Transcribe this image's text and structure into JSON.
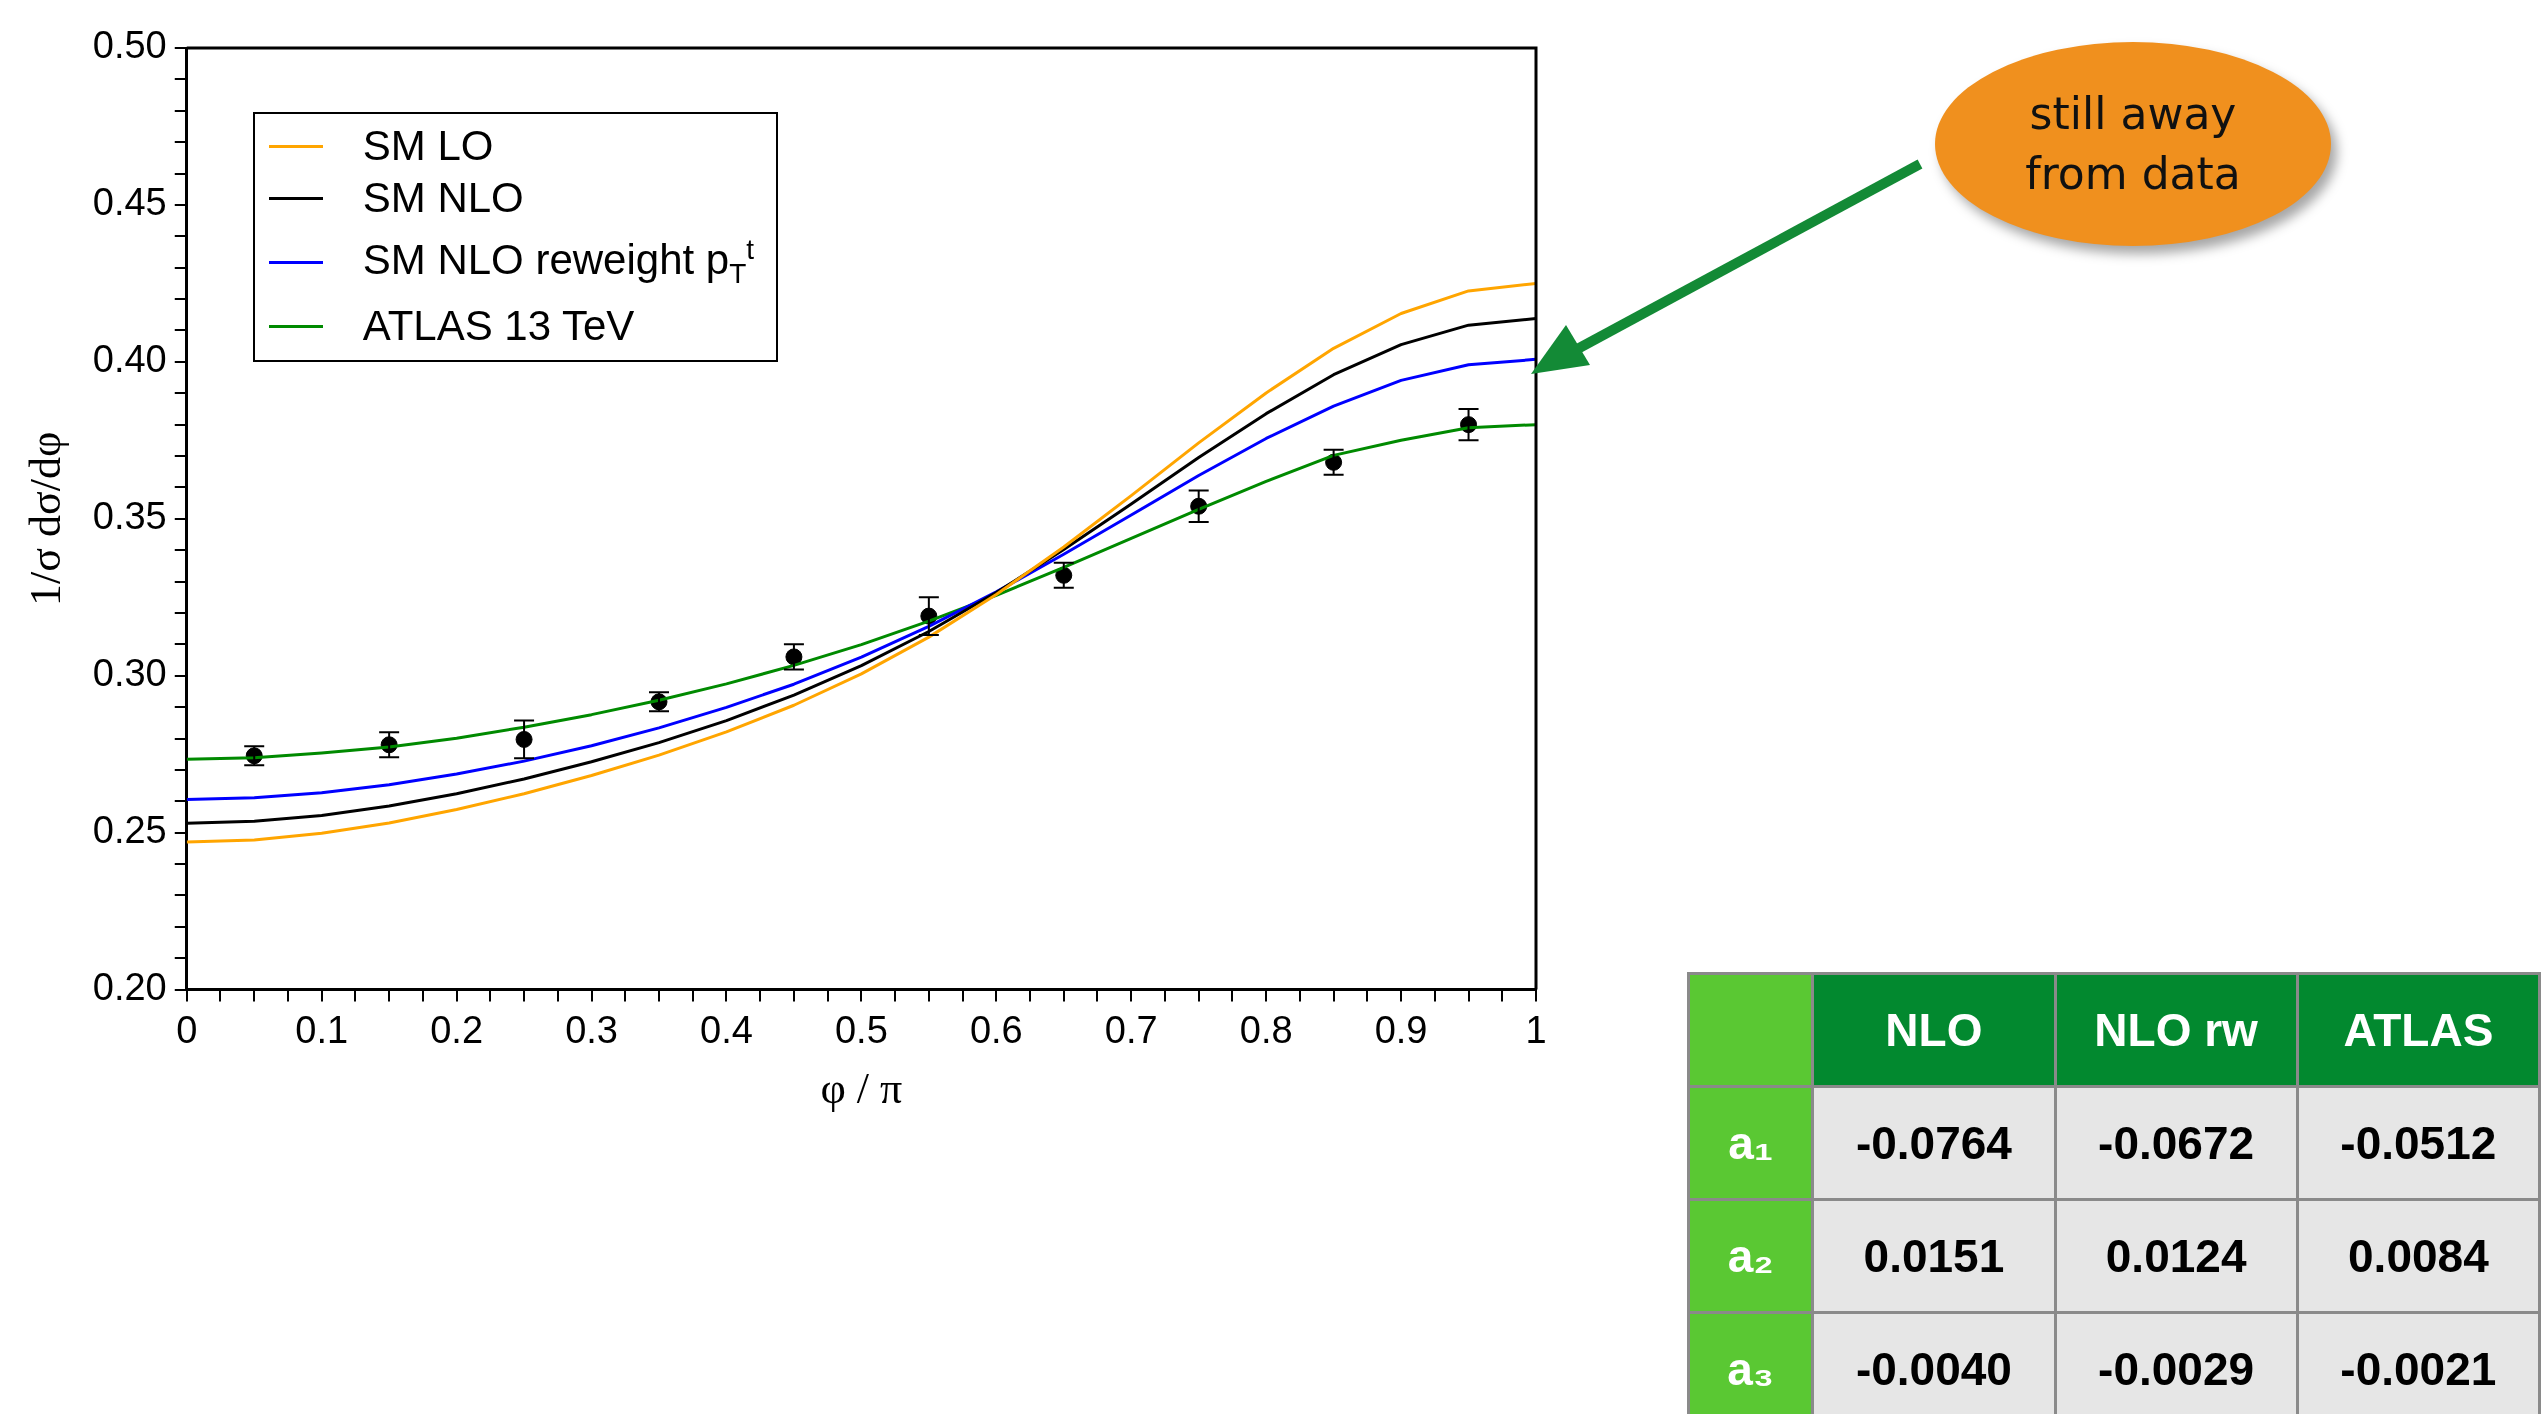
{
  "chart_data": [
    {
      "type": "line",
      "xlabel": "φ / π",
      "ylabel": "1/σ dσ/dφ",
      "xlim": [
        0,
        1
      ],
      "ylim": [
        0.2,
        0.5
      ],
      "xticks": [
        {
          "value": 0,
          "label": "0"
        },
        {
          "value": 0.025,
          "label": null
        },
        {
          "value": 0.05,
          "label": null
        },
        {
          "value": 0.075,
          "label": null
        },
        0.1,
        {
          "value": 0.125,
          "label": null
        },
        {
          "value": 0.15,
          "label": null
        },
        {
          "value": 0.175,
          "label": null
        },
        0.2,
        {
          "value": 0.225,
          "label": null
        },
        {
          "value": 0.25,
          "label": null
        },
        {
          "value": 0.275,
          "label": null
        },
        0.3,
        {
          "value": 0.325,
          "label": null
        },
        {
          "value": 0.35,
          "label": null
        },
        {
          "value": 0.375,
          "label": null
        },
        0.4,
        {
          "value": 0.425,
          "label": null
        },
        {
          "value": 0.45,
          "label": null
        },
        {
          "value": 0.475,
          "label": null
        },
        0.5,
        {
          "value": 0.525,
          "label": null
        },
        {
          "value": 0.55,
          "label": null
        },
        {
          "value": 0.575,
          "label": null
        },
        0.6,
        {
          "value": 0.625,
          "label": null
        },
        {
          "value": 0.65,
          "label": null
        },
        {
          "value": 0.675,
          "label": null
        },
        0.7,
        {
          "value": 0.725,
          "label": null
        },
        {
          "value": 0.75,
          "label": null
        },
        {
          "value": 0.775,
          "label": null
        },
        0.8,
        {
          "value": 0.825,
          "label": null
        },
        {
          "value": 0.85,
          "label": null
        },
        {
          "value": 0.875,
          "label": null
        },
        0.9,
        {
          "value": 0.925,
          "label": null
        },
        {
          "value": 0.95,
          "label": null
        },
        {
          "value": 0.975,
          "label": null
        },
        {
          "value": 1,
          "label": "1"
        }
      ],
      "yticks": [
        {
          "value": 0.2,
          "label": "0.20"
        },
        {
          "value": 0.21,
          "label": null
        },
        {
          "value": 0.22,
          "label": null
        },
        {
          "value": 0.23,
          "label": null
        },
        {
          "value": 0.24,
          "label": null
        },
        0.25,
        {
          "value": 0.26,
          "label": null
        },
        {
          "value": 0.27,
          "label": null
        },
        {
          "value": 0.28,
          "label": null
        },
        {
          "value": 0.29,
          "label": null
        },
        {
          "value": 0.3,
          "label": "0.30"
        },
        {
          "value": 0.31,
          "label": null
        },
        {
          "value": 0.32,
          "label": null
        },
        {
          "value": 0.33,
          "label": null
        },
        {
          "value": 0.34,
          "label": null
        },
        0.35,
        {
          "value": 0.36,
          "label": null
        },
        {
          "value": 0.37,
          "label": null
        },
        {
          "value": 0.38,
          "label": null
        },
        {
          "value": 0.39,
          "label": null
        },
        {
          "value": 0.4,
          "label": "0.40"
        },
        {
          "value": 0.41,
          "label": null
        },
        {
          "value": 0.42,
          "label": null
        },
        {
          "value": 0.43,
          "label": null
        },
        {
          "value": 0.44,
          "label": null
        },
        0.45,
        {
          "value": 0.46,
          "label": null
        },
        {
          "value": 0.47,
          "label": null
        },
        {
          "value": 0.48,
          "label": null
        },
        {
          "value": 0.49,
          "label": null
        },
        {
          "value": 0.5,
          "label": "0.50"
        }
      ],
      "legend": "top left",
      "grid": false,
      "annotations": [
        "still away from data"
      ],
      "series": [
        {
          "name": "SM LO",
          "type": "line",
          "color": "#ffa500",
          "x": [
            0,
            0.05,
            0.1,
            0.15,
            0.2,
            0.25,
            0.3,
            0.35,
            0.4,
            0.45,
            0.5,
            0.55,
            0.6,
            0.65,
            0.7,
            0.75,
            0.8,
            0.85,
            0.9,
            0.95,
            1
          ],
          "values": [
            0.247,
            0.2477,
            0.2498,
            0.2531,
            0.2574,
            0.2624,
            0.2682,
            0.2747,
            0.2821,
            0.2906,
            0.3006,
            0.3123,
            0.3259,
            0.341,
            0.3574,
            0.3742,
            0.3901,
            0.4043,
            0.4154,
            0.4226,
            0.425
          ]
        },
        {
          "name": "SM NLO",
          "type": "line",
          "color": "#000000",
          "x": [
            0,
            0.05,
            0.1,
            0.15,
            0.2,
            0.25,
            0.3,
            0.35,
            0.4,
            0.45,
            0.5,
            0.55,
            0.6,
            0.65,
            0.7,
            0.75,
            0.8,
            0.85,
            0.9,
            0.95,
            1
          ],
          "values": [
            0.253,
            0.2536,
            0.2555,
            0.2585,
            0.2624,
            0.2671,
            0.2726,
            0.2787,
            0.2857,
            0.2938,
            0.3032,
            0.3141,
            0.3265,
            0.3402,
            0.3547,
            0.3695,
            0.3835,
            0.3959,
            0.4055,
            0.4117,
            0.4138
          ]
        },
        {
          "name": "SM NLO reweight p$_{T}$$^{t}$",
          "type": "line",
          "color": "#0000ff",
          "x": [
            0,
            0.05,
            0.1,
            0.15,
            0.2,
            0.25,
            0.3,
            0.35,
            0.4,
            0.45,
            0.5,
            0.55,
            0.6,
            0.65,
            0.7,
            0.75,
            0.8,
            0.85,
            0.9,
            0.95,
            1
          ],
          "values": [
            0.2606,
            0.2611,
            0.2627,
            0.2653,
            0.2687,
            0.2728,
            0.2777,
            0.2834,
            0.2899,
            0.2973,
            0.3059,
            0.3157,
            0.3267,
            0.3387,
            0.3512,
            0.3638,
            0.3756,
            0.3859,
            0.3941,
            0.3991,
            0.4008
          ]
        },
        {
          "name": "ATLAS 13 TeV",
          "type": "line",
          "color": "#008a00",
          "x": [
            0,
            0.05,
            0.1,
            0.15,
            0.2,
            0.25,
            0.3,
            0.35,
            0.4,
            0.45,
            0.5,
            0.55,
            0.6,
            0.65,
            0.7,
            0.75,
            0.8,
            0.85,
            0.9,
            0.95,
            1
          ],
          "values": [
            0.2734,
            0.2739,
            0.2754,
            0.2773,
            0.2801,
            0.2836,
            0.2876,
            0.2922,
            0.2974,
            0.3033,
            0.3099,
            0.3174,
            0.3256,
            0.3345,
            0.3438,
            0.353,
            0.3619,
            0.3702,
            0.375,
            0.379,
            0.38
          ]
        },
        {
          "type": "scatter",
          "color": "#000000",
          "marker": "circle",
          "x": [
            0.05,
            0.15,
            0.25,
            0.35,
            0.45,
            0.55,
            0.65,
            0.75,
            0.85,
            0.95
          ],
          "values": [
            0.2745,
            0.278,
            0.2797,
            0.2917,
            0.306,
            0.319,
            0.332,
            0.354,
            0.368,
            0.38
          ],
          "errors": [
            0.003,
            0.004,
            0.006,
            0.003,
            0.004,
            0.006,
            0.004,
            0.005,
            0.004,
            0.005
          ]
        }
      ]
    },
    {
      "type": "other",
      "annotations": [
        "NLO",
        "NLO rw",
        "ATLAS",
        "a₁",
        "-0.0764",
        "-0.0672",
        "-0.0512",
        "a₂",
        "0.0151",
        "0.0124",
        "0.0084",
        "a₃",
        "-0.0040",
        "-0.0029",
        "-0.0021"
      ]
    }
  ]
}
